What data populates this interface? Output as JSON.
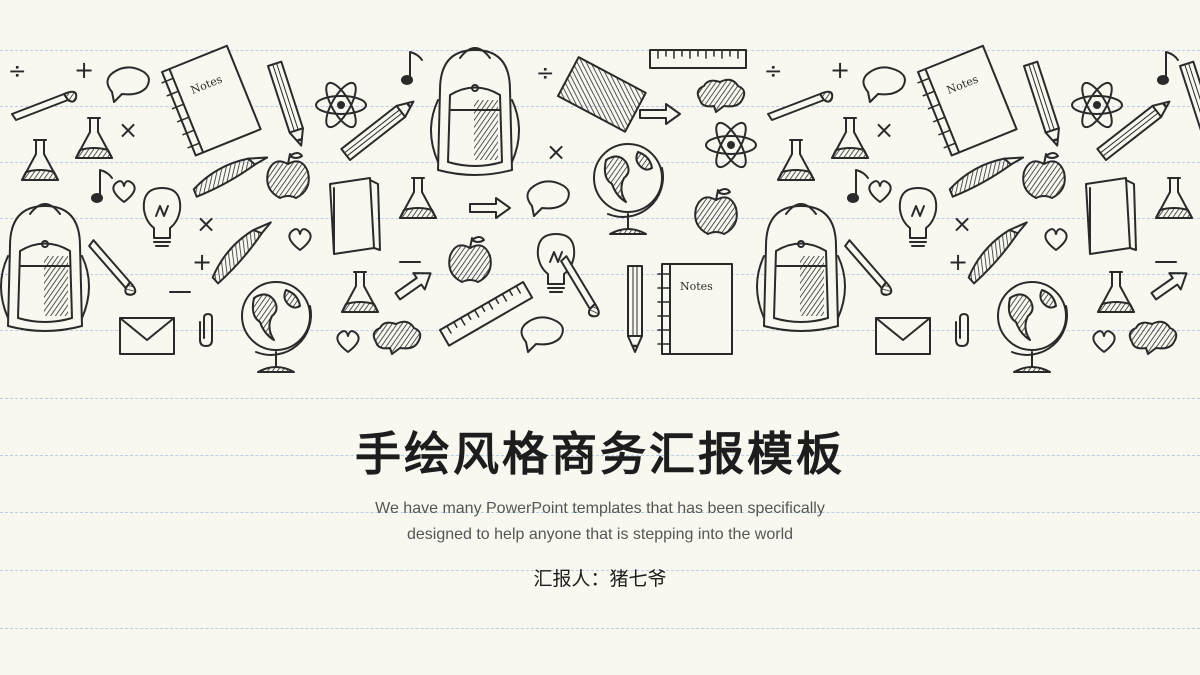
{
  "slide": {
    "title": "手绘风格商务汇报模板",
    "subtitle_line1": "We have many PowerPoint templates that has been specifically",
    "subtitle_line2": "designed to help anyone that is stepping into the world",
    "reporter": "汇报人：猪七爷"
  },
  "doodles": {
    "notebook_label": "Notes",
    "icons": [
      "backpack-icon",
      "globe-icon",
      "notebook-icon",
      "pencil-icon",
      "pen-icon",
      "lightbulb-icon",
      "apple-icon",
      "flask-icon",
      "atom-icon",
      "book-icon",
      "ruler-icon",
      "envelope-icon",
      "paperclip-icon",
      "heart-icon",
      "music-note-icon",
      "speech-bubble-icon",
      "arrow-icon",
      "math-symbol-icon"
    ]
  },
  "colors": {
    "background": "#f8f8f1",
    "ink": "#2a2a2a",
    "ruled_line": "#b9cde6"
  }
}
